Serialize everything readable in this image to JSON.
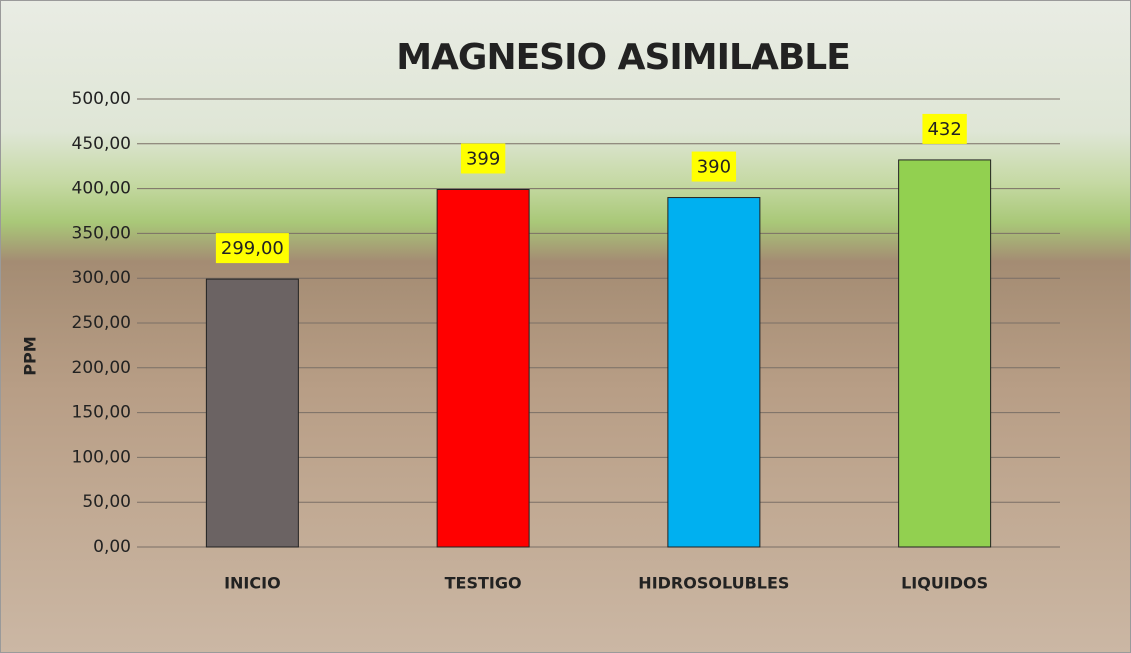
{
  "chart_data": {
    "type": "bar",
    "title": "MAGNESIO ASIMILABLE",
    "y_label": "PPM",
    "categories": [
      "INICIO",
      "TESTIGO",
      "HIDROSOLUBLES",
      "LIQUIDOS"
    ],
    "values": [
      299,
      399,
      390,
      432
    ],
    "value_labels": [
      "299,00",
      "399",
      "390",
      "432"
    ],
    "colors": [
      "#6b6363",
      "#ff0000",
      "#00b0f0",
      "#92d050"
    ],
    "ylim": [
      0,
      500
    ],
    "yticks": [
      {
        "value": 0,
        "label": "0,00"
      },
      {
        "value": 50,
        "label": "50,00"
      },
      {
        "value": 100,
        "label": "100,00"
      },
      {
        "value": 150,
        "label": "150,00"
      },
      {
        "value": 200,
        "label": "200,00"
      },
      {
        "value": 250,
        "label": "250,00"
      },
      {
        "value": 300,
        "label": "300,00"
      },
      {
        "value": 350,
        "label": "350,00"
      },
      {
        "value": 400,
        "label": "400,00"
      },
      {
        "value": 450,
        "label": "450,00"
      },
      {
        "value": 500,
        "label": "500,00"
      }
    ],
    "grid": true
  }
}
